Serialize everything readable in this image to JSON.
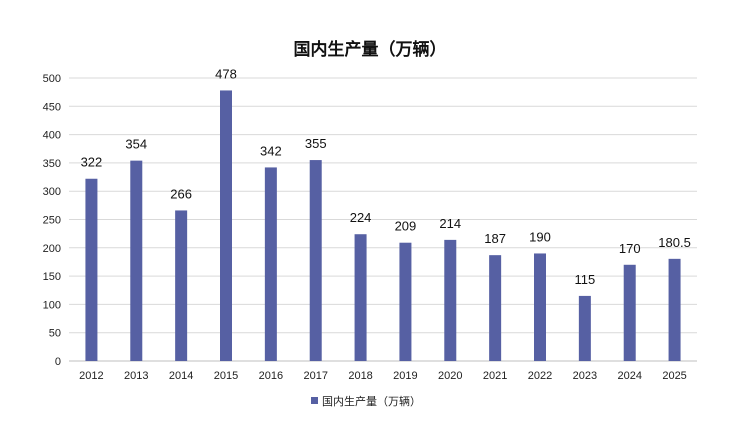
{
  "chart_data": {
    "type": "bar",
    "title": "国内生产量（万辆）",
    "categories": [
      "2012",
      "2013",
      "2014",
      "2015",
      "2016",
      "2017",
      "2018",
      "2019",
      "2020",
      "2021",
      "2022",
      "2023",
      "2024",
      "2025"
    ],
    "series": [
      {
        "name": "国内生产量（万辆）",
        "values": [
          322,
          354,
          266,
          478,
          342,
          355,
          224,
          209,
          214,
          187,
          190,
          115,
          170,
          180.5
        ],
        "labels": [
          "322",
          "354",
          "266",
          "478",
          "342",
          "355",
          "224",
          "209",
          "214",
          "187",
          "190",
          "115",
          "170",
          "180.5"
        ],
        "color": "#5660A3"
      }
    ],
    "ylim": [
      0,
      500
    ],
    "yticks": [
      "0",
      "50",
      "100",
      "150",
      "200",
      "250",
      "300",
      "350",
      "400",
      "450",
      "500"
    ],
    "ytick_values": [
      0,
      50,
      100,
      150,
      200,
      250,
      300,
      350,
      400,
      450,
      500
    ],
    "grid": true,
    "legend_position": "bottom"
  }
}
